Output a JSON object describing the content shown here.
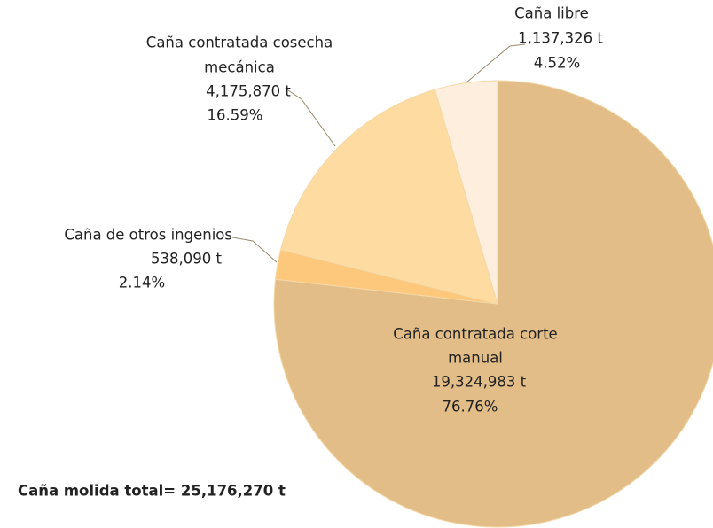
{
  "chart_data": {
    "type": "pie",
    "categories": [
      [
        "Caña contratada corte",
        "manual"
      ],
      [
        "Caña de otros ingenios"
      ],
      [
        "Caña contratada cosecha",
        "mecánica"
      ],
      [
        "Caña libre"
      ]
    ],
    "values": [
      19324983,
      538090,
      4175870,
      1137326
    ],
    "value_labels": [
      "19,324,983 t",
      "538,090 t",
      "4,175,870 t",
      "1,137,326 t"
    ],
    "percent_labels": [
      "76.76%",
      "2.14%",
      "16.59%",
      "4.52%"
    ],
    "colors": [
      "#e2bd88",
      "#fdc77c",
      "#fedba0",
      "#fdeedd"
    ],
    "annotation": "Caña molida total= 25,176,270 t"
  }
}
